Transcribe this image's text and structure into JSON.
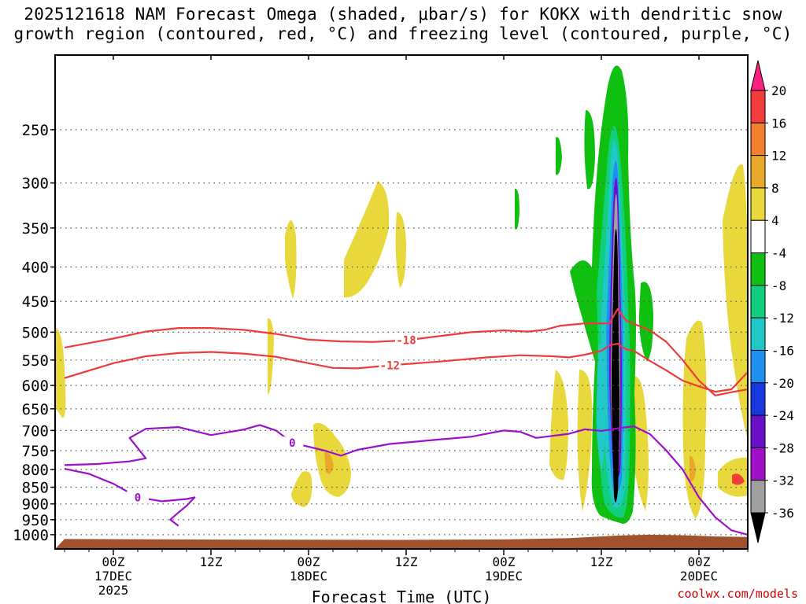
{
  "chart_data": {
    "type": "heatmap",
    "title_line1": "2025121618 NAM Forecast Omega (shaded, μbar/s) for KOKX with dendritic snow",
    "title_line2": "growth region (contoured, red, °C) and freezing level (contoured, purple, °C)",
    "xlabel": "Forecast Time (UTC)",
    "credit": "coolwx.com/models",
    "x_ticks": [
      {
        "hour": 6,
        "label": "00Z",
        "sub1": "17DEC",
        "sub2": "2025"
      },
      {
        "hour": 18,
        "label": "12Z",
        "sub1": "",
        "sub2": ""
      },
      {
        "hour": 30,
        "label": "00Z",
        "sub1": "18DEC",
        "sub2": ""
      },
      {
        "hour": 42,
        "label": "12Z",
        "sub1": "",
        "sub2": ""
      },
      {
        "hour": 54,
        "label": "00Z",
        "sub1": "19DEC",
        "sub2": ""
      },
      {
        "hour": 66,
        "label": "12Z",
        "sub1": "",
        "sub2": ""
      },
      {
        "hour": 78,
        "label": "00Z",
        "sub1": "20DEC",
        "sub2": ""
      }
    ],
    "xlim_hours": [
      0,
      84
    ],
    "y_levels_hpa": [
      250,
      300,
      350,
      400,
      450,
      500,
      550,
      600,
      650,
      700,
      750,
      800,
      850,
      900,
      950,
      1000
    ],
    "colorbar": {
      "labels": [
        "20",
        "16",
        "12",
        "8",
        "4",
        "-4",
        "-8",
        "-12",
        "-16",
        "-20",
        "-24",
        "-28",
        "-32",
        "-36"
      ],
      "colors": [
        "#ff1f7f",
        "#f23d3d",
        "#f2802e",
        "#e8a82a",
        "#e8d83c",
        "#ffffff",
        "#10c010",
        "#10d080",
        "#20c8c8",
        "#2090f0",
        "#1838e0",
        "#6a10c8",
        "#a010c8",
        "#a0a0a0",
        "#000000"
      ]
    },
    "series": [
      {
        "name": "Dendritic growth region -12°C contour",
        "color": "#ee3a3a",
        "label": "-12",
        "points": [
          [
            0,
            585
          ],
          [
            6,
            556
          ],
          [
            10,
            543
          ],
          [
            14,
            537
          ],
          [
            18,
            535
          ],
          [
            22,
            538
          ],
          [
            26,
            544
          ],
          [
            30,
            556
          ],
          [
            33,
            565
          ],
          [
            36,
            566
          ],
          [
            40,
            560
          ],
          [
            46,
            553
          ],
          [
            52,
            545
          ],
          [
            56,
            541
          ],
          [
            60,
            543
          ],
          [
            62,
            545
          ],
          [
            64,
            540
          ],
          [
            66,
            533
          ],
          [
            67,
            523
          ],
          [
            68,
            520
          ],
          [
            69,
            530
          ],
          [
            70,
            533
          ],
          [
            72,
            552
          ],
          [
            74,
            570
          ],
          [
            76,
            590
          ],
          [
            78,
            602
          ],
          [
            80,
            613
          ],
          [
            82,
            608
          ],
          [
            84,
            573
          ]
        ]
      },
      {
        "name": "Dendritic growth region -18°C contour",
        "color": "#ee3a3a",
        "label": "-18",
        "points": [
          [
            0,
            527
          ],
          [
            6,
            511
          ],
          [
            10,
            499
          ],
          [
            14,
            493
          ],
          [
            18,
            493
          ],
          [
            22,
            496
          ],
          [
            26,
            503
          ],
          [
            30,
            513
          ],
          [
            34,
            516
          ],
          [
            38,
            517
          ],
          [
            42,
            514
          ],
          [
            46,
            507
          ],
          [
            50,
            500
          ],
          [
            54,
            497
          ],
          [
            57,
            499
          ],
          [
            59,
            496
          ],
          [
            61,
            489
          ],
          [
            64,
            485
          ],
          [
            67,
            485
          ],
          [
            68,
            462
          ],
          [
            69,
            480
          ],
          [
            70,
            486
          ],
          [
            72,
            497
          ],
          [
            74,
            517
          ],
          [
            76,
            550
          ],
          [
            78,
            590
          ],
          [
            80,
            621
          ],
          [
            82,
            614
          ],
          [
            84,
            608
          ]
        ]
      },
      {
        "name": "Freezing level 0°C contour",
        "color": "#9b10c9",
        "label": "0",
        "points": [
          [
            0,
            788
          ],
          [
            4,
            785
          ],
          [
            8,
            778
          ],
          [
            10,
            770
          ],
          [
            8,
            718
          ],
          [
            10,
            696
          ],
          [
            14,
            692
          ],
          [
            18,
            711
          ],
          [
            22,
            698
          ],
          [
            24,
            687
          ],
          [
            26,
            700
          ],
          [
            28,
            730
          ],
          [
            32,
            750
          ],
          [
            34,
            763
          ],
          [
            36,
            748
          ],
          [
            40,
            733
          ],
          [
            46,
            722
          ],
          [
            50,
            715
          ],
          [
            54,
            700
          ],
          [
            56,
            703
          ],
          [
            58,
            718
          ],
          [
            62,
            708
          ],
          [
            64,
            697
          ],
          [
            66,
            701
          ],
          [
            68,
            695
          ],
          [
            70,
            690
          ],
          [
            72,
            709
          ],
          [
            74,
            750
          ],
          [
            76,
            800
          ],
          [
            78,
            880
          ],
          [
            80,
            942
          ],
          [
            82,
            985
          ],
          [
            84,
            1000
          ]
        ]
      },
      {
        "name": "Freezing level 0°C contour (lower)",
        "color": "#9b10c9",
        "label": "0",
        "points": [
          [
            0,
            798
          ],
          [
            3,
            812
          ],
          [
            6,
            840
          ],
          [
            9,
            880
          ],
          [
            12,
            892
          ],
          [
            15,
            885
          ],
          [
            16,
            880
          ],
          [
            15,
            906
          ],
          [
            14,
            927
          ],
          [
            13,
            950
          ],
          [
            14,
            970
          ]
        ]
      },
      {
        "name": "Omega contour -24",
        "color": "#5a20d0",
        "label": "",
        "points": []
      }
    ],
    "terrain_color": "#a0522d"
  }
}
